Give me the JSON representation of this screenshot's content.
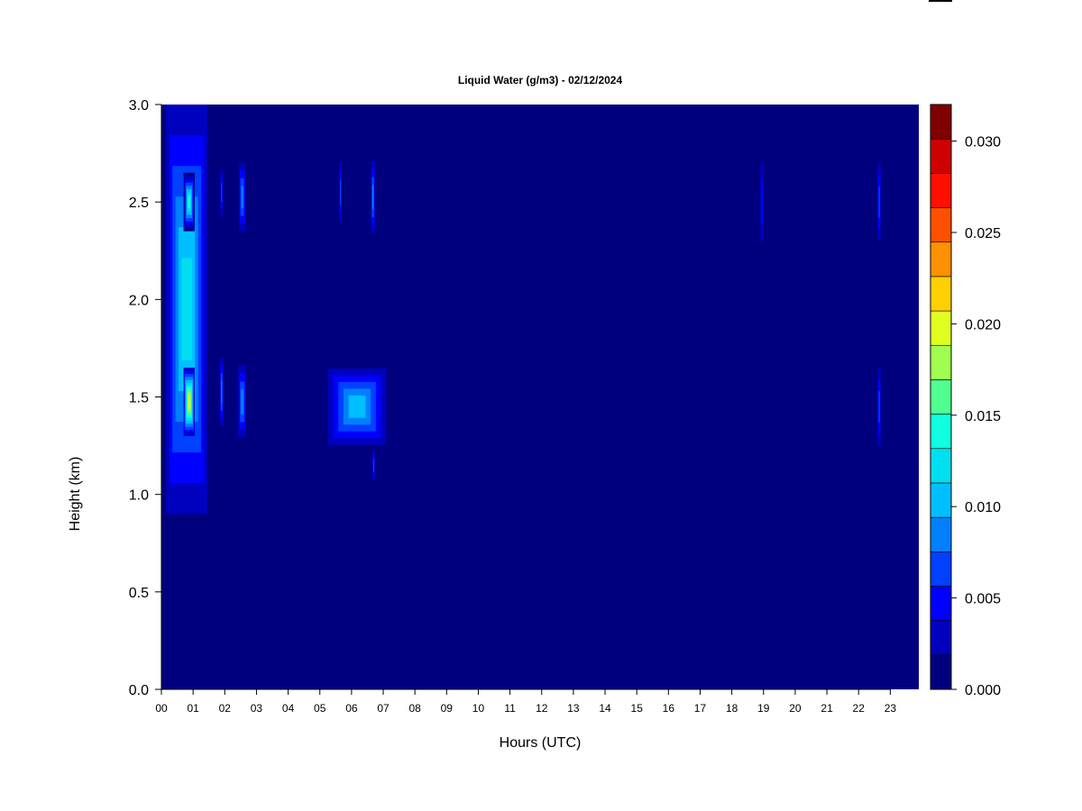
{
  "chart_data": {
    "type": "heatmap",
    "title": "Liquid Water (g/m3) - 02/12/2024",
    "xlabel": "Hours (UTC)",
    "ylabel": "Height (km)",
    "x_ticks": [
      "00",
      "01",
      "02",
      "03",
      "04",
      "05",
      "06",
      "07",
      "08",
      "09",
      "10",
      "11",
      "12",
      "13",
      "14",
      "15",
      "16",
      "17",
      "18",
      "19",
      "20",
      "21",
      "22",
      "23"
    ],
    "y_ticks": [
      "0.0",
      "0.5",
      "1.0",
      "1.5",
      "2.0",
      "2.5",
      "3.0"
    ],
    "xlim": [
      0,
      23.9
    ],
    "ylim": [
      0,
      3.0
    ],
    "colorbar": {
      "range": [
        0,
        0.032
      ],
      "ticks": [
        "0.000",
        "0.005",
        "0.010",
        "0.015",
        "0.020",
        "0.025",
        "0.030"
      ],
      "colors": [
        "#00007f",
        "#0000bf",
        "#0000ff",
        "#0040ff",
        "#0080ff",
        "#00bfff",
        "#00dfef",
        "#10ffe0",
        "#50ff90",
        "#a0ff50",
        "#e0ff20",
        "#ffd000",
        "#ff9000",
        "#ff5000",
        "#ff1000",
        "#cf0000",
        "#800000"
      ]
    },
    "background_value": 0.0,
    "features": [
      {
        "x": [
          0.15,
          1.45
        ],
        "y": [
          0.9,
          3.0
        ],
        "peak": 0.012
      },
      {
        "x": [
          0.7,
          1.05
        ],
        "y": [
          1.3,
          1.65
        ],
        "peak": 0.019
      },
      {
        "x": [
          0.7,
          1.05
        ],
        "y": [
          2.35,
          2.65
        ],
        "peak": 0.015
      },
      {
        "x": [
          1.85,
          1.95
        ],
        "y": [
          1.35,
          1.7
        ],
        "peak": 0.008
      },
      {
        "x": [
          1.85,
          1.95
        ],
        "y": [
          2.4,
          2.7
        ],
        "peak": 0.007
      },
      {
        "x": [
          2.4,
          2.7
        ],
        "y": [
          1.25,
          1.7
        ],
        "peak": 0.009
      },
      {
        "x": [
          2.45,
          2.65
        ],
        "y": [
          2.35,
          2.7
        ],
        "peak": 0.008
      },
      {
        "x": [
          5.1,
          7.25
        ],
        "y": [
          1.22,
          1.68
        ],
        "peak": 0.011
      },
      {
        "x": [
          5.6,
          5.7
        ],
        "y": [
          2.35,
          2.75
        ],
        "peak": 0.007
      },
      {
        "x": [
          6.6,
          6.75
        ],
        "y": [
          2.3,
          2.75
        ],
        "peak": 0.009
      },
      {
        "x": [
          6.65,
          6.75
        ],
        "y": [
          1.05,
          1.25
        ],
        "peak": 0.007
      },
      {
        "x": [
          18.9,
          19.0
        ],
        "y": [
          2.3,
          2.7
        ],
        "peak": 0.004
      },
      {
        "x": [
          22.6,
          22.7
        ],
        "y": [
          2.3,
          2.7
        ],
        "peak": 0.006
      },
      {
        "x": [
          22.6,
          22.7
        ],
        "y": [
          1.25,
          1.65
        ],
        "peak": 0.006
      }
    ]
  }
}
